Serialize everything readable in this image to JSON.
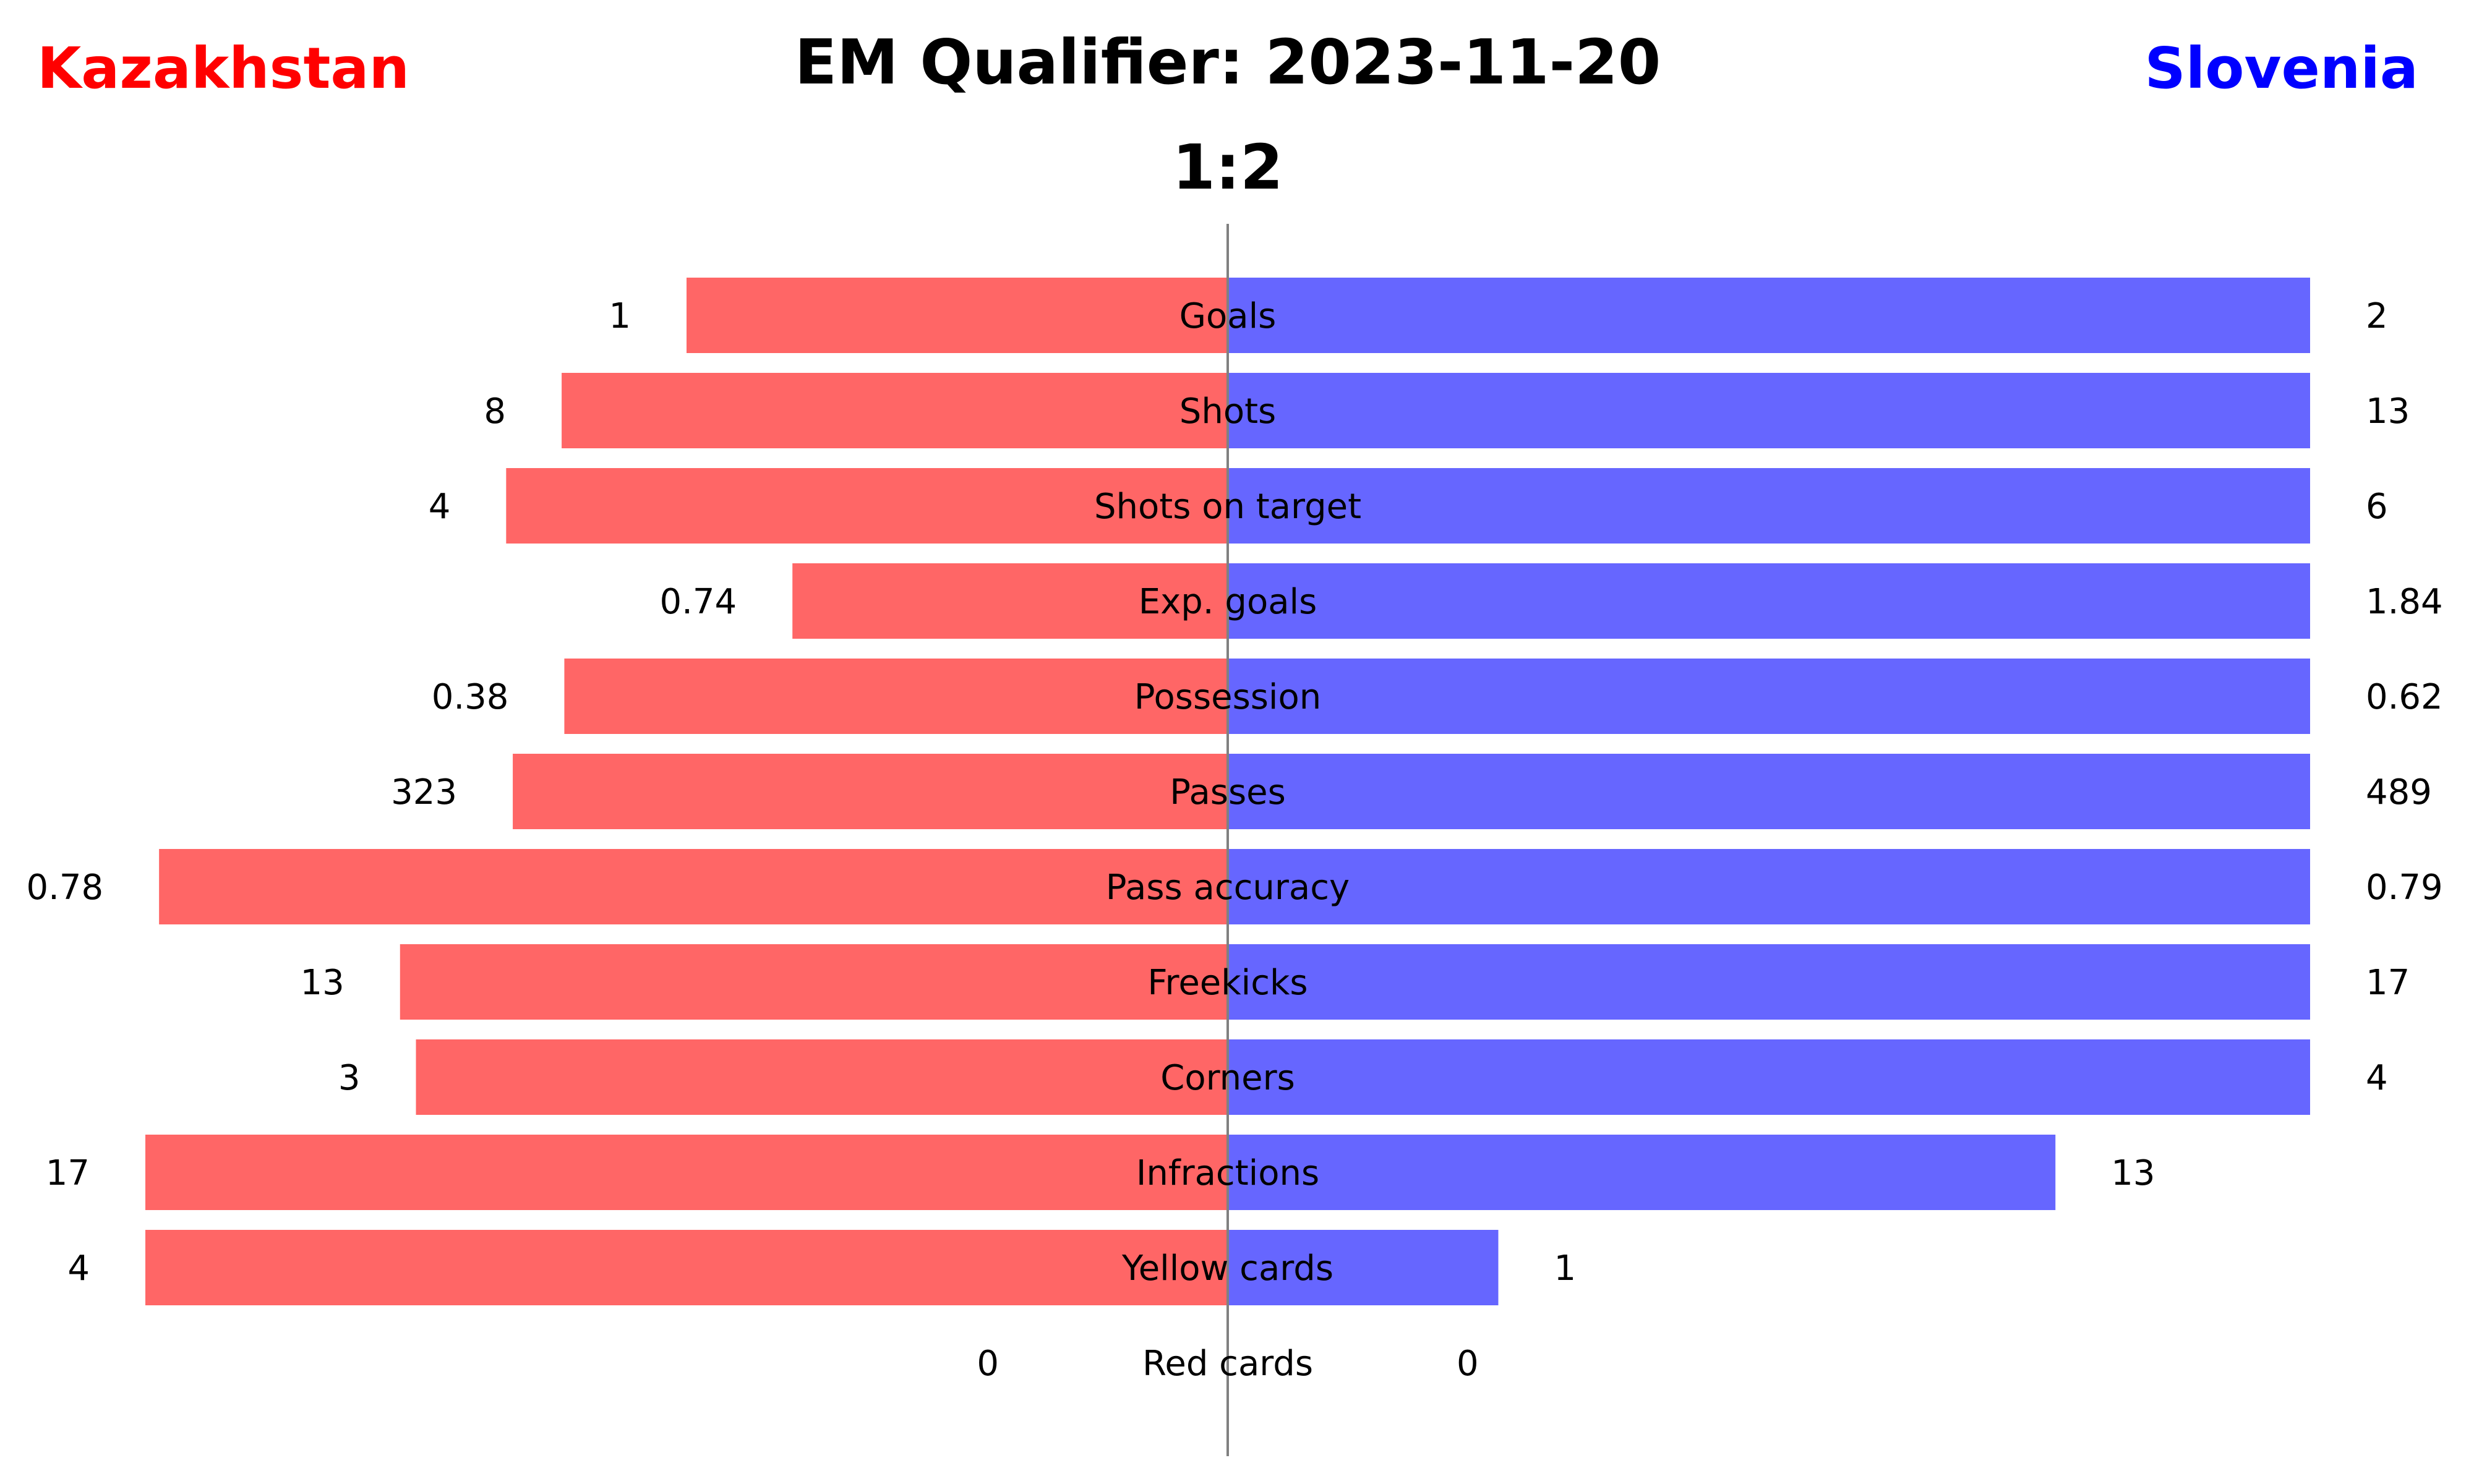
{
  "chart_data": {
    "type": "bar",
    "orientation": "horizontal-diverging",
    "title": "EM Qualifier: 2023-11-20",
    "subtitle": "1:2",
    "grid": false,
    "legend": "none",
    "categories": [
      "Goals",
      "Shots",
      "Shots on target",
      "Exp. goals",
      "Possession",
      "Passes",
      "Pass accuracy",
      "Freekicks",
      "Corners",
      "Infractions",
      "Yellow cards",
      "Red cards"
    ],
    "series": [
      {
        "name": "Kazakhstan",
        "side": "left",
        "color": "#ff6666",
        "title_color": "#ff0000",
        "values": [
          1,
          8,
          4,
          0.74,
          0.38,
          323,
          0.78,
          13,
          3,
          17,
          4,
          0
        ],
        "value_labels": [
          "1",
          "8",
          "4",
          "0.74",
          "0.38",
          "323",
          "0.78",
          "13",
          "3",
          "17",
          "4",
          "0"
        ]
      },
      {
        "name": "Slovenia",
        "side": "right",
        "color": "#6666ff",
        "title_color": "#0000ff",
        "values": [
          2,
          13,
          6,
          1.84,
          0.62,
          489,
          0.79,
          17,
          4,
          13,
          1,
          0
        ],
        "value_labels": [
          "2",
          "13",
          "6",
          "1.84",
          "0.62",
          "489",
          "0.79",
          "17",
          "4",
          "13",
          "1",
          "0"
        ]
      }
    ],
    "center_line_color": "#808080"
  }
}
